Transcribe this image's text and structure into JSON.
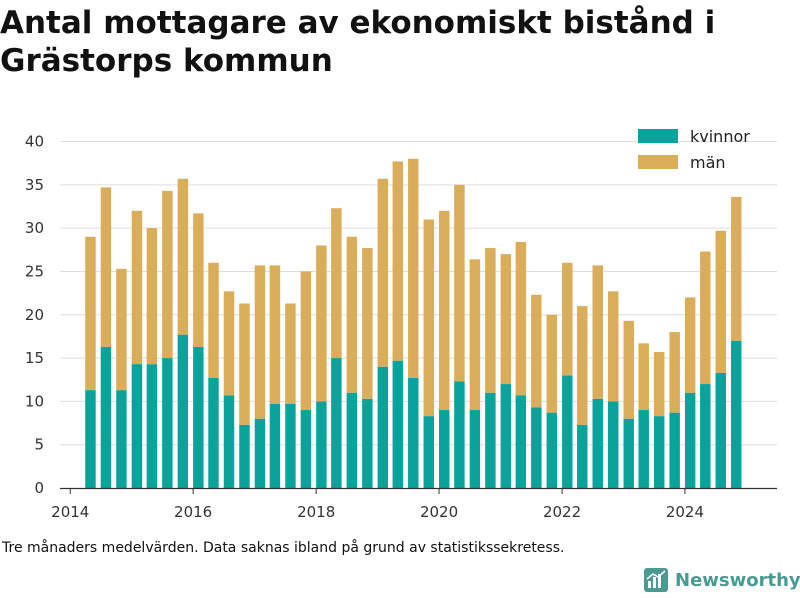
{
  "chart_data": {
    "type": "bar",
    "stacked": true,
    "title": "Antal mottagare av ekonomiskt bistånd i Grästorps kommun",
    "xlabel": "",
    "ylabel": "",
    "ylim": [
      0,
      40
    ],
    "yticks": [
      "0",
      "5",
      "10",
      "15",
      "20",
      "25",
      "30",
      "35",
      "40"
    ],
    "xticks": [
      "2014",
      "2016",
      "2018",
      "2020",
      "2022",
      "2024"
    ],
    "xlim": [
      "2013-11-01",
      "2025-07-01"
    ],
    "grid": true,
    "legend_position": "top-right",
    "x": [
      "2014-05-01",
      "2014-08-01",
      "2014-11-01",
      "2015-02-01",
      "2015-05-01",
      "2015-08-01",
      "2015-11-01",
      "2016-02-01",
      "2016-05-01",
      "2016-08-01",
      "2016-11-01",
      "2017-02-01",
      "2017-05-01",
      "2017-08-01",
      "2017-11-01",
      "2018-02-01",
      "2018-05-01",
      "2018-08-01",
      "2018-11-01",
      "2019-02-01",
      "2019-05-01",
      "2019-08-01",
      "2019-11-01",
      "2020-02-01",
      "2020-05-01",
      "2020-08-01",
      "2020-11-01",
      "2021-02-01",
      "2021-05-01",
      "2021-08-01",
      "2021-11-01",
      "2022-02-01",
      "2022-05-01",
      "2022-08-01",
      "2022-11-01",
      "2023-02-01",
      "2023-05-01",
      "2023-08-01",
      "2023-11-01",
      "2024-02-01",
      "2024-05-01",
      "2024-08-01",
      "2024-11-01"
    ],
    "series": [
      {
        "name": "kvinnor",
        "color": "#0aa39b",
        "values": [
          11.3,
          16.3,
          11.3,
          14.3,
          14.3,
          15.0,
          17.7,
          16.3,
          12.7,
          10.7,
          7.3,
          8.0,
          9.7,
          9.7,
          9.0,
          10.0,
          15.0,
          11.0,
          10.3,
          14.0,
          14.7,
          12.7,
          8.3,
          9.0,
          12.3,
          9.0,
          11.0,
          12.0,
          10.7,
          9.3,
          8.7,
          13.0,
          7.3,
          10.3,
          10.0,
          8.0,
          9.0,
          8.3,
          8.7,
          11.0,
          12.0,
          13.3,
          17.0
        ]
      },
      {
        "name": "män",
        "color": "#d9ad5a",
        "values": [
          17.7,
          18.4,
          14.0,
          17.7,
          15.7,
          19.3,
          18.0,
          15.4,
          13.3,
          12.0,
          14.0,
          17.7,
          16.0,
          11.6,
          16.0,
          18.0,
          17.3,
          18.0,
          17.4,
          21.7,
          23.0,
          25.3,
          22.7,
          23.0,
          22.7,
          17.4,
          16.7,
          15.0,
          17.7,
          13.0,
          11.3,
          13.0,
          13.7,
          15.4,
          12.7,
          11.3,
          7.7,
          7.4,
          9.3,
          11.0,
          15.3,
          16.4,
          16.6
        ]
      }
    ]
  },
  "footer": {
    "note": "Tre månaders medelvärden. Data saknas ibland på grund av statistikssekretess.",
    "brand": "Newsworthy",
    "brand_color": "#4a9a92"
  }
}
